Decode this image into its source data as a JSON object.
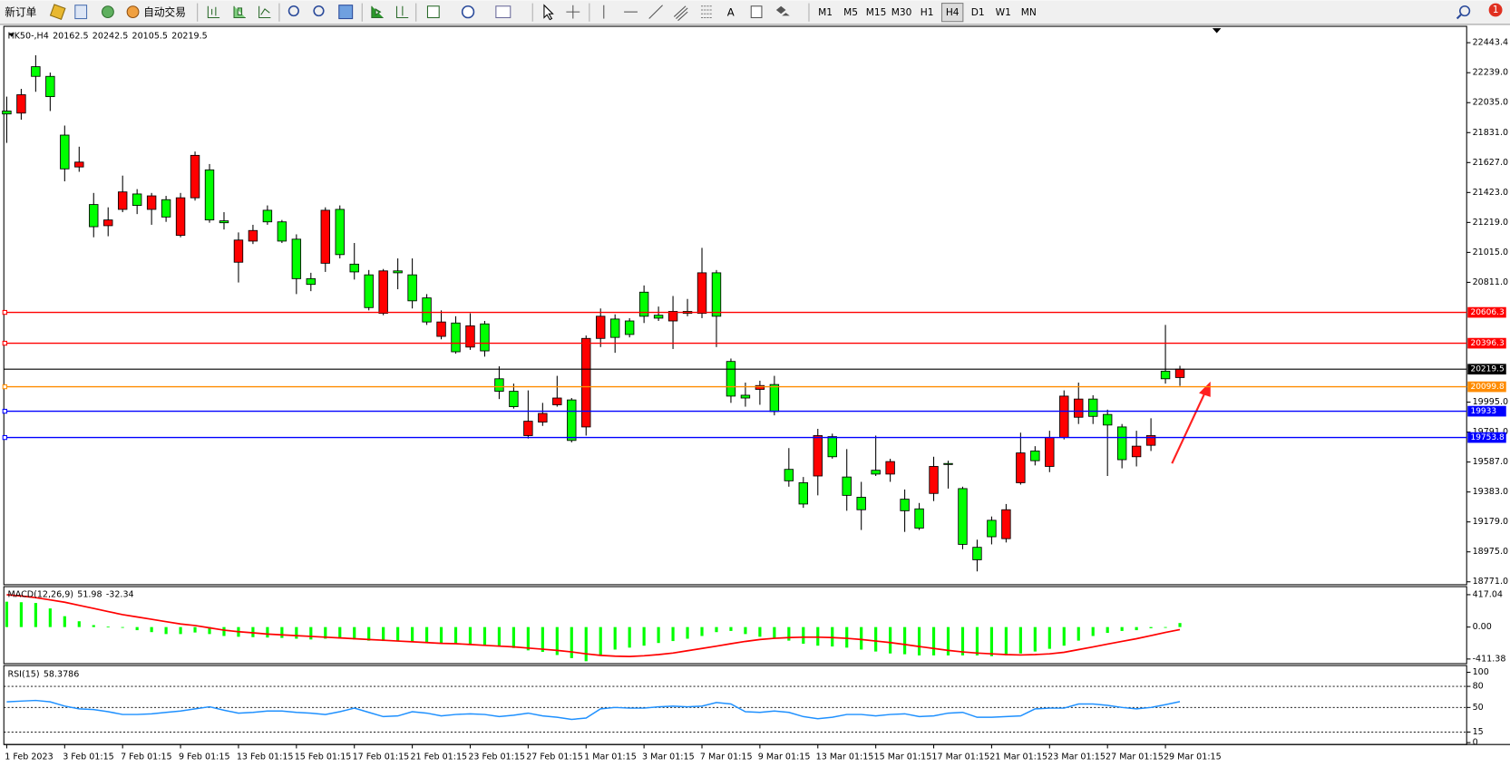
{
  "toolbar": {
    "new_order": "新订单",
    "auto_trading": "自动交易",
    "timeframes": [
      "M1",
      "M5",
      "M15",
      "M30",
      "H1",
      "H4",
      "D1",
      "W1",
      "MN"
    ],
    "active_timeframe": "H4",
    "badge": "1"
  },
  "chart_data": [
    {
      "type": "candlestick",
      "symbol": "HK50-,H4",
      "categories": [
        "1 Feb 2023",
        null,
        null,
        null,
        "3 Feb 01:15",
        null,
        null,
        null,
        "7 Feb 01:15",
        null,
        null,
        null,
        "9 Feb 01:15",
        null,
        null,
        null,
        "13 Feb 01:15",
        null,
        null,
        null,
        "15 Feb 01:15",
        null,
        null,
        null,
        "17 Feb 01:15",
        null,
        null,
        null,
        "21 Feb 01:15",
        null,
        null,
        null,
        "23 Feb 01:15",
        null,
        null,
        null,
        "27 Feb 01:15",
        null,
        null,
        null,
        "1 Mar 01:15",
        null,
        null,
        null,
        "3 Mar 01:15",
        null,
        null,
        null,
        "7 Mar 01:15",
        null,
        null,
        null,
        "9 Mar 01:15",
        null,
        null,
        null,
        "13 Mar 01:15",
        null,
        null,
        null,
        "15 Mar 01:15",
        null,
        null,
        null,
        "17 Mar 01:15",
        null,
        null,
        null,
        "21 Mar 01:15",
        null,
        null,
        null,
        "23 Mar 01:15",
        null,
        null,
        null,
        "27 Mar 01:15",
        null,
        null,
        null,
        "29 Mar 01:15",
        null
      ],
      "open": [
        21978,
        21964,
        22280,
        22214,
        21814,
        21597,
        21341,
        21197,
        21308,
        21413,
        21308,
        21374,
        21131,
        21387,
        21577,
        21230,
        20948,
        21092,
        21302,
        21223,
        21105,
        20836,
        20941,
        21308,
        20935,
        20862,
        20600,
        20889,
        20862,
        20705,
        20443,
        20534,
        20370,
        20528,
        20154,
        20069,
        19767,
        19859,
        19977,
        20010,
        19826,
        20429,
        20561,
        20548,
        20744,
        20587,
        20548,
        20613,
        20600,
        20876,
        20272,
        20042,
        20082,
        20115,
        19537,
        19446,
        19492,
        19760,
        19485,
        19347,
        19531,
        19505,
        19334,
        19268,
        19373,
        19577,
        19406,
        19006,
        19190,
        19065,
        19446,
        19662,
        19557,
        19754,
        19892,
        20016,
        19911,
        19826,
        19623,
        19701,
        20206,
        20162.5
      ],
      "high": [
        22076,
        22129,
        22358,
        22240,
        21879,
        21735,
        21420,
        21322,
        21538,
        21446,
        21420,
        21400,
        21420,
        21702,
        21617,
        21289,
        21151,
        21203,
        21335,
        21236,
        21138,
        20876,
        21322,
        21335,
        21079,
        20895,
        20902,
        20974,
        20974,
        20731,
        20620,
        20580,
        20600,
        20548,
        20239,
        20121,
        20075,
        19990,
        20174,
        20023,
        20449,
        20633,
        20593,
        20567,
        20790,
        20646,
        20718,
        20698,
        21046,
        20895,
        20292,
        20128,
        20141,
        20174,
        19682,
        19485,
        19813,
        19780,
        19675,
        19452,
        19767,
        19609,
        19400,
        19308,
        19623,
        19596,
        19419,
        19058,
        19216,
        19301,
        19787,
        19695,
        19800,
        20075,
        20128,
        20042,
        19944,
        19846,
        19800,
        19885,
        20521,
        20242.5
      ],
      "low": [
        21761,
        21919,
        22109,
        21978,
        21499,
        21564,
        21118,
        21125,
        21289,
        21276,
        21203,
        21223,
        21118,
        21368,
        21217,
        21171,
        20810,
        21072,
        21203,
        21079,
        20731,
        20751,
        20882,
        20974,
        20830,
        20620,
        20587,
        20764,
        20633,
        20521,
        20423,
        20325,
        20351,
        20305,
        20016,
        19951,
        19747,
        19833,
        19964,
        19721,
        19767,
        20370,
        20331,
        20436,
        20534,
        20548,
        20357,
        20580,
        20567,
        20370,
        19990,
        19964,
        19977,
        19905,
        19419,
        19275,
        19360,
        19610,
        19255,
        19124,
        19492,
        19452,
        19111,
        19124,
        19321,
        19406,
        18993,
        18842,
        19026,
        19039,
        19433,
        19564,
        19518,
        19741,
        19846,
        19846,
        19492,
        19544,
        19557,
        19662,
        20121,
        20105.5
      ],
      "close": [
        21958,
        22089,
        22214,
        22076,
        21584,
        21630,
        21190,
        21236,
        21427,
        21335,
        21400,
        21256,
        21387,
        21676,
        21236,
        21217,
        21099,
        21164,
        21223,
        21092,
        20836,
        20797,
        21302,
        21000,
        20882,
        20639,
        20889,
        20876,
        20685,
        20541,
        20541,
        20338,
        20515,
        20344,
        20069,
        19964,
        19865,
        19918,
        20023,
        19734,
        20429,
        20580,
        20436,
        20456,
        20580,
        20567,
        20613,
        20600,
        20876,
        20580,
        20036,
        20023,
        20108,
        19931,
        19459,
        19301,
        19767,
        19623,
        19360,
        19262,
        19505,
        19590,
        19255,
        19137,
        19557,
        19570,
        19026,
        18921,
        19078,
        19262,
        19649,
        19596,
        19754,
        20036,
        20016,
        19898,
        19839,
        19603,
        19695,
        19767,
        20154,
        20219.5
      ],
      "up_color": "#ff0000",
      "down_color": "#00ff00",
      "last_price_color": "#000000",
      "ylim": [
        18751.3,
        22554.9
      ],
      "yticks": [
        22443.4,
        {
          "value": 22239,
          "label": "22239.0"
        },
        {
          "value": 22035,
          "label": "22035.0"
        },
        {
          "value": 21831,
          "label": "21831.0"
        },
        {
          "value": 21627,
          "label": "21627.0"
        },
        {
          "value": 21423,
          "label": "21423.0"
        },
        {
          "value": 21219,
          "label": "21219.0"
        },
        {
          "value": 21015,
          "label": "21015.0"
        },
        {
          "value": 20811,
          "label": "20811.0"
        },
        {
          "value": 19995,
          "label": "19995.0"
        },
        {
          "value": 19791,
          "label": "19791.0"
        },
        {
          "value": 19587,
          "label": "19587.0"
        },
        {
          "value": 19383,
          "label": "19383.0"
        },
        {
          "value": 19179,
          "label": "19179.0"
        },
        {
          "value": 18975,
          "label": "18975.0"
        },
        {
          "value": 18771,
          "label": "18771.0"
        }
      ],
      "hlines": [
        {
          "value": 20606.3,
          "color": "#ff0000"
        },
        {
          "value": 20396.3,
          "color": "#ff0000"
        },
        {
          "value": 20099.8,
          "color": "#ff8c00"
        },
        {
          "value": 19933.0,
          "color": "#0000ff"
        },
        {
          "value": 19753.8,
          "color": "#0000ff"
        }
      ]
    },
    {
      "type": "macd",
      "title": "MACD(12,26,9)",
      "series": [
        {
          "style": "histogram",
          "color": "#00ff00",
          "values": [
            327,
            320,
            310,
            240,
            140,
            75,
            25,
            5,
            -10,
            -40,
            -65,
            -90,
            -90,
            -70,
            -90,
            -115,
            -125,
            -130,
            -135,
            -140,
            -150,
            -160,
            -150,
            -150,
            -160,
            -175,
            -180,
            -185,
            -190,
            -195,
            -210,
            -220,
            -225,
            -240,
            -250,
            -270,
            -300,
            -320,
            -360,
            -400,
            -440,
            -365,
            -290,
            -265,
            -240,
            -205,
            -180,
            -150,
            -115,
            -65,
            -50,
            -90,
            -125,
            -150,
            -175,
            -215,
            -240,
            -250,
            -265,
            -290,
            -315,
            -340,
            -350,
            -365,
            -365,
            -365,
            -365,
            -365,
            -375,
            -365,
            -340,
            -315,
            -280,
            -240,
            -175,
            -115,
            -75,
            -50,
            -40,
            -15,
            -5,
            51.98
          ]
        },
        {
          "style": "line",
          "color": "#ff0000",
          "values": [
            417,
            400,
            380,
            350,
            320,
            280,
            240,
            200,
            160,
            130,
            100,
            70,
            40,
            20,
            -10,
            -40,
            -60,
            -75,
            -90,
            -100,
            -110,
            -120,
            -130,
            -140,
            -150,
            -160,
            -170,
            -180,
            -190,
            -200,
            -210,
            -215,
            -225,
            -235,
            -245,
            -255,
            -270,
            -285,
            -300,
            -320,
            -345,
            -365,
            -375,
            -380,
            -370,
            -355,
            -335,
            -305,
            -275,
            -245,
            -215,
            -185,
            -160,
            -145,
            -135,
            -130,
            -130,
            -135,
            -145,
            -160,
            -180,
            -200,
            -225,
            -250,
            -275,
            -300,
            -320,
            -335,
            -345,
            -355,
            -360,
            -355,
            -345,
            -325,
            -290,
            -255,
            -220,
            -185,
            -150,
            -110,
            -70,
            -32.34
          ]
        }
      ],
      "ylim": [
        -471.2,
        520.8
      ],
      "yticks": [
        417.04,
        {
          "value": 0,
          "label": "0.00"
        },
        -411.38
      ]
    },
    {
      "type": "line",
      "title": "RSI(15)",
      "series": [
        {
          "color": "#1e90ff",
          "values": [
            58,
            59,
            60,
            58,
            52,
            48,
            47,
            44,
            40,
            40,
            41,
            43,
            45,
            48,
            51,
            46,
            42,
            43,
            45,
            45,
            43,
            42,
            40,
            44,
            49,
            43,
            37,
            38,
            44,
            42,
            38,
            40,
            41,
            40,
            37,
            39,
            42,
            38,
            36,
            33,
            35,
            48,
            50,
            49,
            49,
            51,
            52,
            51,
            52,
            57,
            55,
            44,
            43,
            45,
            43,
            37,
            34,
            36,
            40,
            40,
            38,
            40,
            41,
            37,
            38,
            42,
            43,
            36,
            36,
            37,
            38,
            48,
            49,
            49,
            55,
            55,
            53,
            50,
            48,
            50,
            54,
            58.3786
          ]
        }
      ],
      "levels": [
        80,
        50,
        15
      ],
      "ylim": [
        -2.7,
        109.6
      ],
      "yticks": [
        100,
        80,
        50,
        15,
        0
      ]
    }
  ]
}
